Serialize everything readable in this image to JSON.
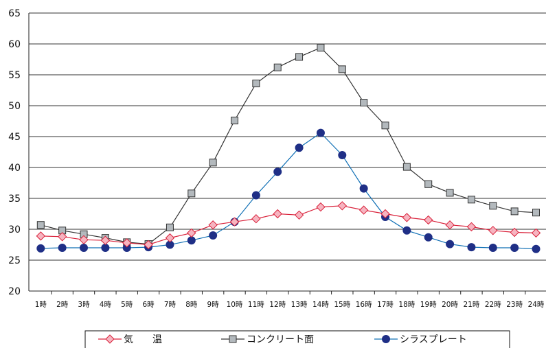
{
  "chart_data": {
    "type": "line",
    "title": "",
    "xlabel": "",
    "ylabel": "",
    "categories": [
      "1時",
      "2時",
      "3時",
      "4時",
      "5時",
      "6時",
      "7時",
      "8時",
      "9時",
      "10時",
      "11時",
      "12時",
      "13時",
      "14時",
      "15時",
      "16時",
      "17時",
      "18時",
      "19時",
      "20時",
      "21時",
      "22時",
      "23時",
      "24時"
    ],
    "ylim": [
      20,
      65
    ],
    "yticks": [
      "20",
      "25",
      "30",
      "35",
      "40",
      "45",
      "50",
      "55",
      "60",
      "65"
    ],
    "grid": true,
    "legend_position": "bottom",
    "series": [
      {
        "name": "気　　温",
        "marker": "diamond",
        "color": "#d9213a",
        "fill": "#f6b4c0",
        "values": [
          28.9,
          28.8,
          28.3,
          28.2,
          27.8,
          27.5,
          28.6,
          29.4,
          30.7,
          31.2,
          31.7,
          32.5,
          32.3,
          33.6,
          33.8,
          33.1,
          32.5,
          31.9,
          31.5,
          30.7,
          30.4,
          29.8,
          29.5,
          29.4
        ]
      },
      {
        "name": "コンクリート面",
        "marker": "square",
        "color": "#333333",
        "fill": "#b3b9bd",
        "values": [
          30.7,
          29.8,
          29.2,
          28.6,
          27.9,
          27.6,
          30.3,
          35.8,
          40.8,
          47.6,
          53.6,
          56.2,
          57.9,
          59.4,
          55.9,
          50.5,
          46.8,
          40.1,
          37.3,
          35.9,
          34.8,
          33.8,
          32.9,
          32.7
        ]
      },
      {
        "name": "シラスプレート",
        "marker": "circle",
        "color": "#0f6fb5",
        "fill": "#1f2f86",
        "values": [
          26.9,
          27.0,
          27.0,
          27.0,
          27.0,
          27.1,
          27.5,
          28.2,
          29.0,
          31.2,
          35.5,
          39.3,
          43.2,
          45.6,
          42.0,
          36.6,
          32.0,
          29.8,
          28.7,
          27.6,
          27.1,
          27.0,
          27.0,
          26.8
        ]
      }
    ]
  }
}
